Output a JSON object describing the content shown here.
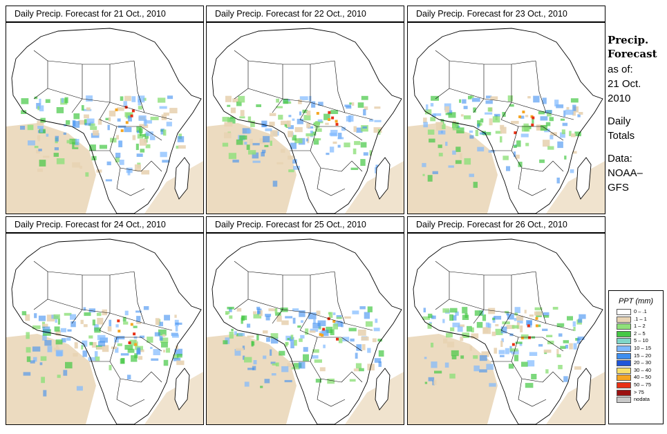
{
  "panels": [
    {
      "title": "Daily Precip. Forecast for  21 Oct., 2010"
    },
    {
      "title": "Daily Precip. Forecast for  22 Oct., 2010"
    },
    {
      "title": "Daily Precip. Forecast for  23 Oct., 2010"
    },
    {
      "title": "Daily Precip. Forecast for  24 Oct., 2010"
    },
    {
      "title": "Daily Precip. Forecast for  25 Oct., 2010"
    },
    {
      "title": "Daily Precip. Forecast for  26 Oct., 2010"
    }
  ],
  "side": {
    "heading_1": "Precip.",
    "heading_2": "Forecast",
    "asof_1": "as of:",
    "asof_2": "21 Oct.",
    "asof_3": "2010",
    "daily_1": "Daily",
    "daily_2": "Totals",
    "data_1": "Data:",
    "data_2": "NOAA–",
    "data_3": "GFS"
  },
  "legend": {
    "title": "PPT (mm)",
    "items": [
      {
        "label": "0 – .1",
        "color": "#ffffff"
      },
      {
        "label": ".1 – 1",
        "color": "#e8d3b3"
      },
      {
        "label": "1 – 2",
        "color": "#8fe07a"
      },
      {
        "label": "2 – 5",
        "color": "#45c845"
      },
      {
        "label": "5 – 10",
        "color": "#7fd6c8"
      },
      {
        "label": "10 – 15",
        "color": "#7fb9ff"
      },
      {
        "label": "15 – 20",
        "color": "#3e8ef0"
      },
      {
        "label": "20 – 30",
        "color": "#1f55d9"
      },
      {
        "label": "30 – 40",
        "color": "#f7e06b"
      },
      {
        "label": "40 – 50",
        "color": "#f5a623"
      },
      {
        "label": "50 – 75",
        "color": "#e83015"
      },
      {
        "label": "> 75",
        "color": "#9b1010"
      },
      {
        "label": "nodata",
        "color": "#c8c8c8"
      }
    ]
  }
}
